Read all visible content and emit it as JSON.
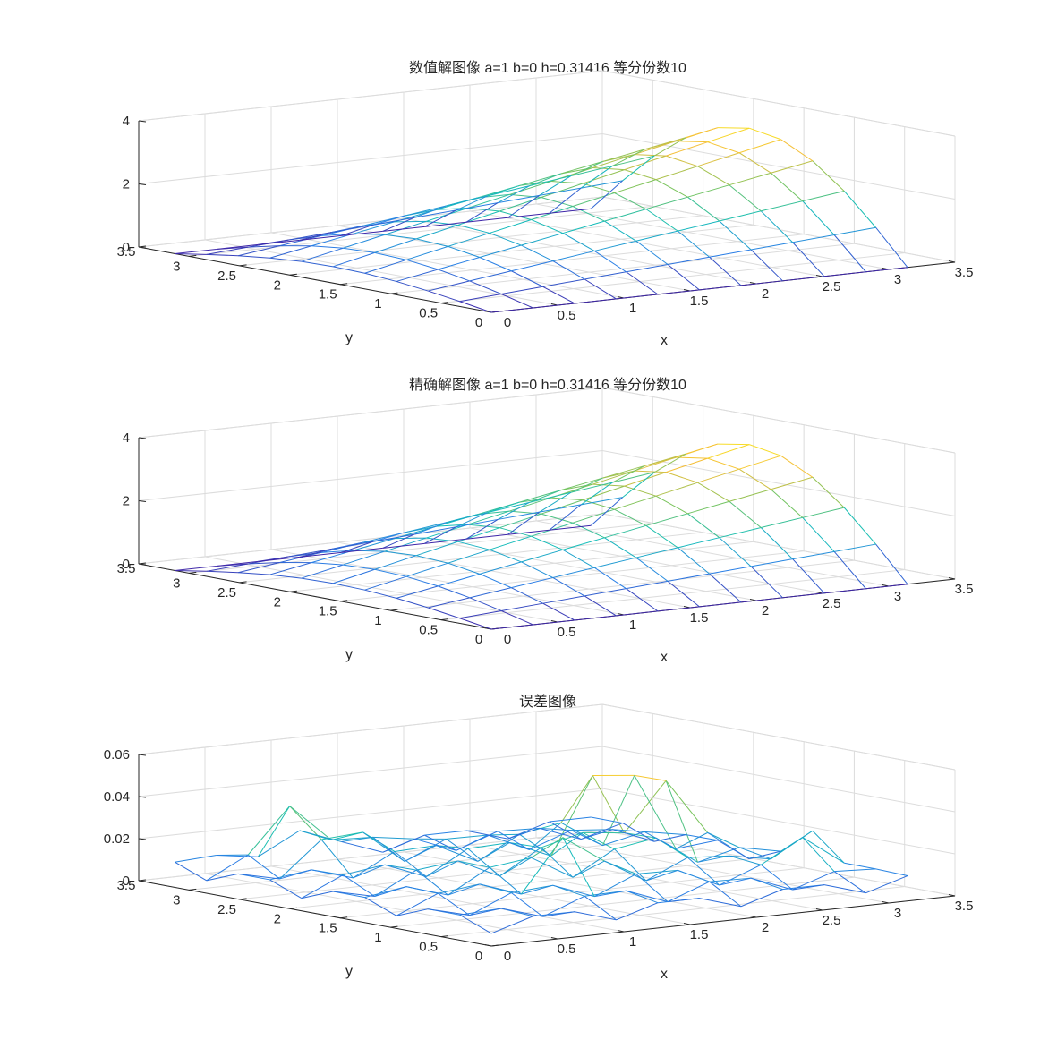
{
  "chart_data": [
    {
      "type": "mesh",
      "title": "数值解图像  a=1  b=0  h=0.31416  等分份数10",
      "xlabel": "x",
      "ylabel": "y",
      "xlim": [
        0,
        3.5
      ],
      "ylim": [
        0,
        3.5
      ],
      "zlim": [
        0,
        4
      ],
      "xticks": [
        "0",
        "0.5",
        "1",
        "1.5",
        "2",
        "2.5",
        "3",
        "3.5"
      ],
      "yticks": [
        "0",
        "0.5",
        "1",
        "1.5",
        "2",
        "2.5",
        "3",
        "3.5"
      ],
      "zticks": [
        "0",
        "2",
        "4"
      ],
      "grid": true,
      "colormap": [
        "#3e26a8",
        "#2a7fe6",
        "#13beb8",
        "#79c35b",
        "#f5bf39",
        "#f9fb15"
      ],
      "surface": "u(x,y) = exp(x)·sin(y)/exp(π/2)·… sampled on an 11×11 grid over [0, π]×[0, π]",
      "grid_n": 10,
      "x_max": 3.14159,
      "y_max": 3.14159
    },
    {
      "type": "mesh",
      "title": "精确解图像  a=1  b=0  h=0.31416  等分份数10",
      "xlabel": "x",
      "ylabel": "y",
      "xlim": [
        0,
        3.5
      ],
      "ylim": [
        0,
        3.5
      ],
      "zlim": [
        0,
        4
      ],
      "xticks": [
        "0",
        "0.5",
        "1",
        "1.5",
        "2",
        "2.5",
        "3",
        "3.5"
      ],
      "yticks": [
        "0",
        "0.5",
        "1",
        "1.5",
        "2",
        "2.5",
        "3",
        "3.5"
      ],
      "zticks": [
        "0",
        "2",
        "4"
      ],
      "grid": true,
      "colormap": [
        "#3e26a8",
        "#2a7fe6",
        "#13beb8",
        "#79c35b",
        "#f5bf39",
        "#f9fb15"
      ],
      "grid_n": 10,
      "x_max": 3.14159,
      "y_max": 3.14159
    },
    {
      "type": "mesh",
      "title": "误差图像",
      "xlabel": "x",
      "ylabel": "y",
      "xlim": [
        0,
        3.5
      ],
      "ylim": [
        0,
        3.5
      ],
      "zlim": [
        0,
        0.06
      ],
      "xticks": [
        "0",
        "0.5",
        "1",
        "1.5",
        "2",
        "2.5",
        "3",
        "3.5"
      ],
      "yticks": [
        "0",
        "0.5",
        "1",
        "1.5",
        "2",
        "2.5",
        "3",
        "3.5"
      ],
      "zticks": [
        "0",
        "0.02",
        "0.04",
        "0.06"
      ],
      "grid": true,
      "colormap": [
        "#3e26a8",
        "#2a7fe6",
        "#13beb8",
        "#79c35b",
        "#f5bf39",
        "#f9fb15"
      ],
      "grid_n": 10,
      "x_max": 3.14159,
      "y_max": 3.14159
    }
  ]
}
